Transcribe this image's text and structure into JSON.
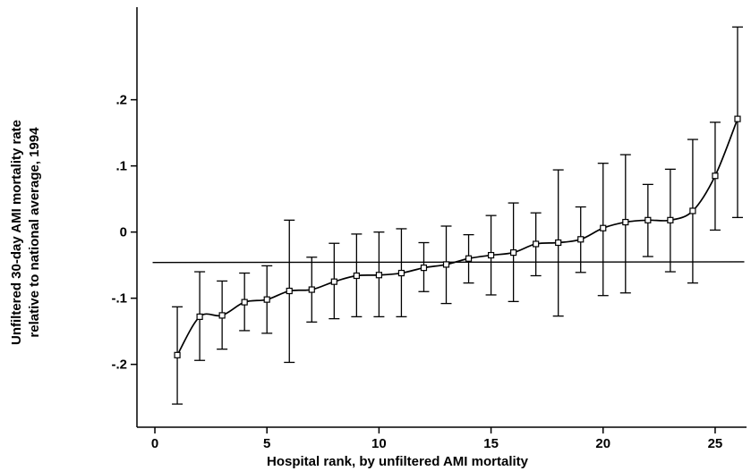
{
  "chart_data": {
    "type": "line",
    "title": "",
    "xlabel": "Hospital rank, by unfiltered AMI mortality",
    "ylabel_lines": [
      "Unfiltered 30-day AMI mortality rate",
      "relative to national average, 1994"
    ],
    "xlim": [
      -0.8,
      26.4
    ],
    "ylim": [
      -0.295,
      0.34
    ],
    "x_ticks": [
      {
        "value": 0,
        "label": "0"
      },
      {
        "value": 5,
        "label": "5"
      },
      {
        "value": 10,
        "label": "10"
      },
      {
        "value": 15,
        "label": "15"
      },
      {
        "value": 20,
        "label": "20"
      },
      {
        "value": 25,
        "label": "25"
      }
    ],
    "y_ticks": [
      {
        "value": -0.2,
        "label": "-.2"
      },
      {
        "value": -0.1,
        "label": "-.1"
      },
      {
        "value": 0,
        "label": "0"
      },
      {
        "value": 0.1,
        "label": ".1"
      },
      {
        "value": 0.2,
        "label": ".2"
      }
    ],
    "grid": false,
    "reference_line": {
      "x": [
        -0.1,
        26.3
      ],
      "y": [
        -0.046,
        -0.045
      ]
    },
    "series": [
      {
        "points": [
          {
            "x": 1,
            "y": -0.186,
            "lo": -0.26,
            "hi": -0.113
          },
          {
            "x": 2,
            "y": -0.128,
            "lo": -0.194,
            "hi": -0.06
          },
          {
            "x": 3,
            "y": -0.126,
            "lo": -0.177,
            "hi": -0.074
          },
          {
            "x": 4,
            "y": -0.106,
            "lo": -0.149,
            "hi": -0.062
          },
          {
            "x": 5,
            "y": -0.102,
            "lo": -0.153,
            "hi": -0.051
          },
          {
            "x": 6,
            "y": -0.089,
            "lo": -0.197,
            "hi": 0.018
          },
          {
            "x": 7,
            "y": -0.087,
            "lo": -0.136,
            "hi": -0.038
          },
          {
            "x": 8,
            "y": -0.075,
            "lo": -0.131,
            "hi": -0.017
          },
          {
            "x": 9,
            "y": -0.066,
            "lo": -0.128,
            "hi": -0.003
          },
          {
            "x": 10,
            "y": -0.065,
            "lo": -0.128,
            "hi": 0
          },
          {
            "x": 11,
            "y": -0.062,
            "lo": -0.128,
            "hi": 0.005
          },
          {
            "x": 12,
            "y": -0.054,
            "lo": -0.09,
            "hi": -0.016
          },
          {
            "x": 13,
            "y": -0.049,
            "lo": -0.108,
            "hi": 0.009
          },
          {
            "x": 14,
            "y": -0.04,
            "lo": -0.077,
            "hi": -0.004
          },
          {
            "x": 15,
            "y": -0.035,
            "lo": -0.095,
            "hi": 0.025
          },
          {
            "x": 16,
            "y": -0.031,
            "lo": -0.105,
            "hi": 0.044
          },
          {
            "x": 17,
            "y": -0.018,
            "lo": -0.066,
            "hi": 0.029
          },
          {
            "x": 18,
            "y": -0.016,
            "lo": -0.127,
            "hi": 0.094
          },
          {
            "x": 19,
            "y": -0.011,
            "lo": -0.061,
            "hi": 0.038
          },
          {
            "x": 20,
            "y": 0.006,
            "lo": -0.096,
            "hi": 0.104
          },
          {
            "x": 21,
            "y": 0.015,
            "lo": -0.092,
            "hi": 0.117
          },
          {
            "x": 22,
            "y": 0.018,
            "lo": -0.037,
            "hi": 0.072
          },
          {
            "x": 23,
            "y": 0.018,
            "lo": -0.06,
            "hi": 0.095
          },
          {
            "x": 24,
            "y": 0.032,
            "lo": -0.077,
            "hi": 0.14
          },
          {
            "x": 25,
            "y": 0.085,
            "lo": 0.003,
            "hi": 0.166
          },
          {
            "x": 26,
            "y": 0.171,
            "lo": 0.022,
            "hi": 0.31
          }
        ]
      }
    ]
  }
}
